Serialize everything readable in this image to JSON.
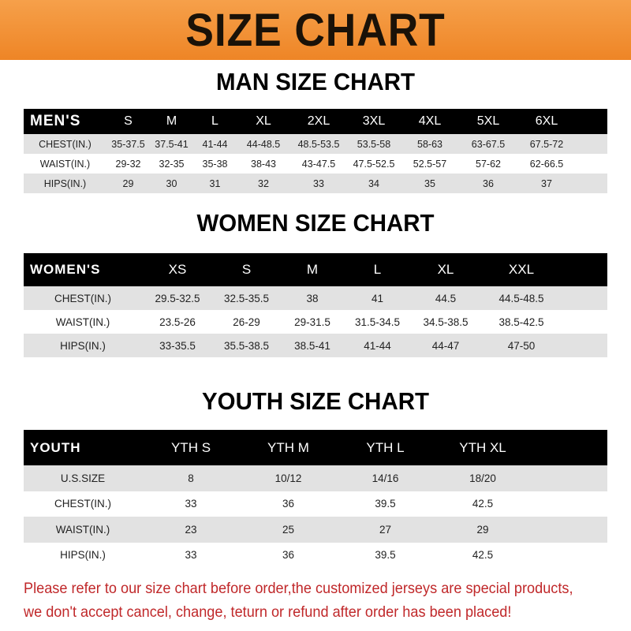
{
  "banner": {
    "title": "SIZE CHART",
    "color": "#ee8526"
  },
  "men": {
    "title": "MAN SIZE CHART",
    "header": [
      "MEN'S",
      "S",
      "M",
      "L",
      "XL",
      "2XL",
      "3XL",
      "4XL",
      "5XL",
      "6XL"
    ],
    "rows": [
      [
        "CHEST(IN.)",
        "35-37.5",
        "37.5-41",
        "41-44",
        "44-48.5",
        "48.5-53.5",
        "53.5-58",
        "58-63",
        "63-67.5",
        "67.5-72"
      ],
      [
        "WAIST(IN.)",
        "29-32",
        "32-35",
        "35-38",
        "38-43",
        "43-47.5",
        "47.5-52.5",
        "52.5-57",
        "57-62",
        "62-66.5"
      ],
      [
        "HIPS(IN.)",
        "29",
        "30",
        "31",
        "32",
        "33",
        "34",
        "35",
        "36",
        "37"
      ]
    ]
  },
  "women": {
    "title": "WOMEN SIZE CHART",
    "header": [
      "WOMEN'S",
      "XS",
      "S",
      "M",
      "L",
      "XL",
      "XXL"
    ],
    "rows": [
      [
        "CHEST(IN.)",
        "29.5-32.5",
        "32.5-35.5",
        "38",
        "41",
        "44.5",
        "44.5-48.5"
      ],
      [
        "WAIST(IN.)",
        "23.5-26",
        "26-29",
        "29-31.5",
        "31.5-34.5",
        "34.5-38.5",
        "38.5-42.5"
      ],
      [
        "HIPS(IN.)",
        "33-35.5",
        "35.5-38.5",
        "38.5-41",
        "41-44",
        "44-47",
        "47-50"
      ]
    ]
  },
  "youth": {
    "title": "YOUTH SIZE CHART",
    "header": [
      "YOUTH",
      "YTH S",
      "YTH M",
      "YTH L",
      "YTH XL"
    ],
    "rows": [
      [
        "U.S.SIZE",
        "8",
        "10/12",
        "14/16",
        "18/20"
      ],
      [
        "CHEST(IN.)",
        "33",
        "36",
        "39.5",
        "42.5"
      ],
      [
        "WAIST(IN.)",
        "23",
        "25",
        "27",
        "29"
      ],
      [
        "HIPS(IN.)",
        "33",
        "36",
        "39.5",
        "42.5"
      ]
    ]
  },
  "notice": {
    "line1": "Please refer to our size chart before order,the customized jerseys are special products,",
    "line2": "we don't accept cancel, change, teturn or refund after order has been placed!",
    "color": "#c0282a"
  }
}
